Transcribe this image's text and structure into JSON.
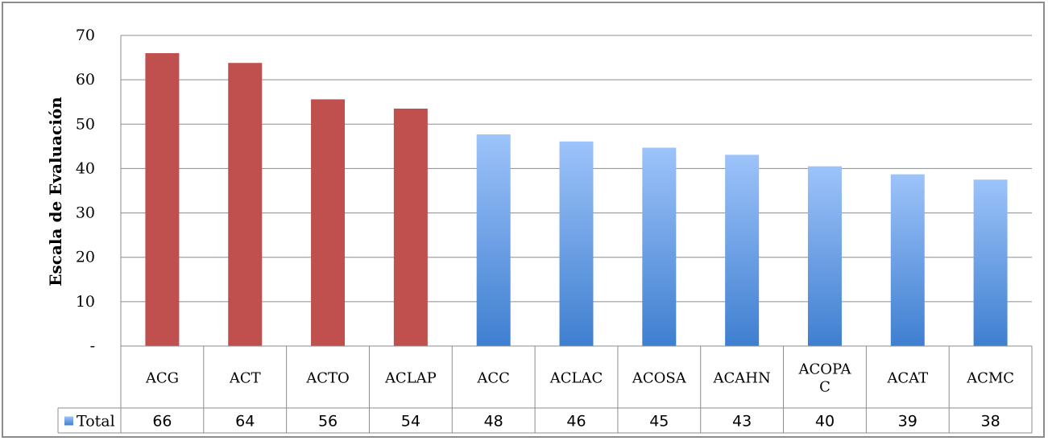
{
  "chart_data": {
    "type": "bar",
    "ylabel": "Escala de Evaluación",
    "ylim": [
      0,
      70
    ],
    "yticks": [
      {
        "value": 0,
        "label": "-"
      },
      {
        "value": 10,
        "label": "10"
      },
      {
        "value": 20,
        "label": "20"
      },
      {
        "value": 30,
        "label": "30"
      },
      {
        "value": 40,
        "label": "40"
      },
      {
        "value": 50,
        "label": "50"
      },
      {
        "value": 60,
        "label": "60"
      },
      {
        "value": 70,
        "label": "70"
      }
    ],
    "grid": true,
    "categories": [
      "ACG",
      "ACT",
      "ACTO",
      "ACLAP",
      "ACC",
      "ACLAC",
      "ACOSA",
      "ACAHN",
      "ACOPAC",
      "ACAT",
      "ACMC"
    ],
    "category_lines": [
      [
        "ACG"
      ],
      [
        "ACT"
      ],
      [
        "ACTO"
      ],
      [
        "ACLAP"
      ],
      [
        "ACC"
      ],
      [
        "ACLAC"
      ],
      [
        "ACOSA"
      ],
      [
        "ACAHN"
      ],
      [
        "ACOPA",
        "C"
      ],
      [
        "ACAT"
      ],
      [
        "ACMC"
      ]
    ],
    "series": [
      {
        "name": "Total",
        "values": [
          66,
          64,
          56,
          54,
          48,
          46,
          45,
          43,
          40,
          39,
          38
        ],
        "plotted_values": [
          66,
          63.8,
          55.6,
          53.5,
          47.7,
          46.1,
          44.7,
          43.1,
          40.5,
          38.7,
          37.5
        ],
        "display_labels": [
          "66",
          "64",
          "56",
          "54",
          "48",
          "46",
          "45",
          "43",
          "40",
          "39",
          "38"
        ]
      }
    ],
    "highlight_count": 4,
    "colors": {
      "highlight": "#c0504d",
      "gradient_top": "#9dc3fa",
      "gradient_bottom": "#3f7fd0",
      "grid": "#8c8c8c"
    },
    "data_table": true
  }
}
